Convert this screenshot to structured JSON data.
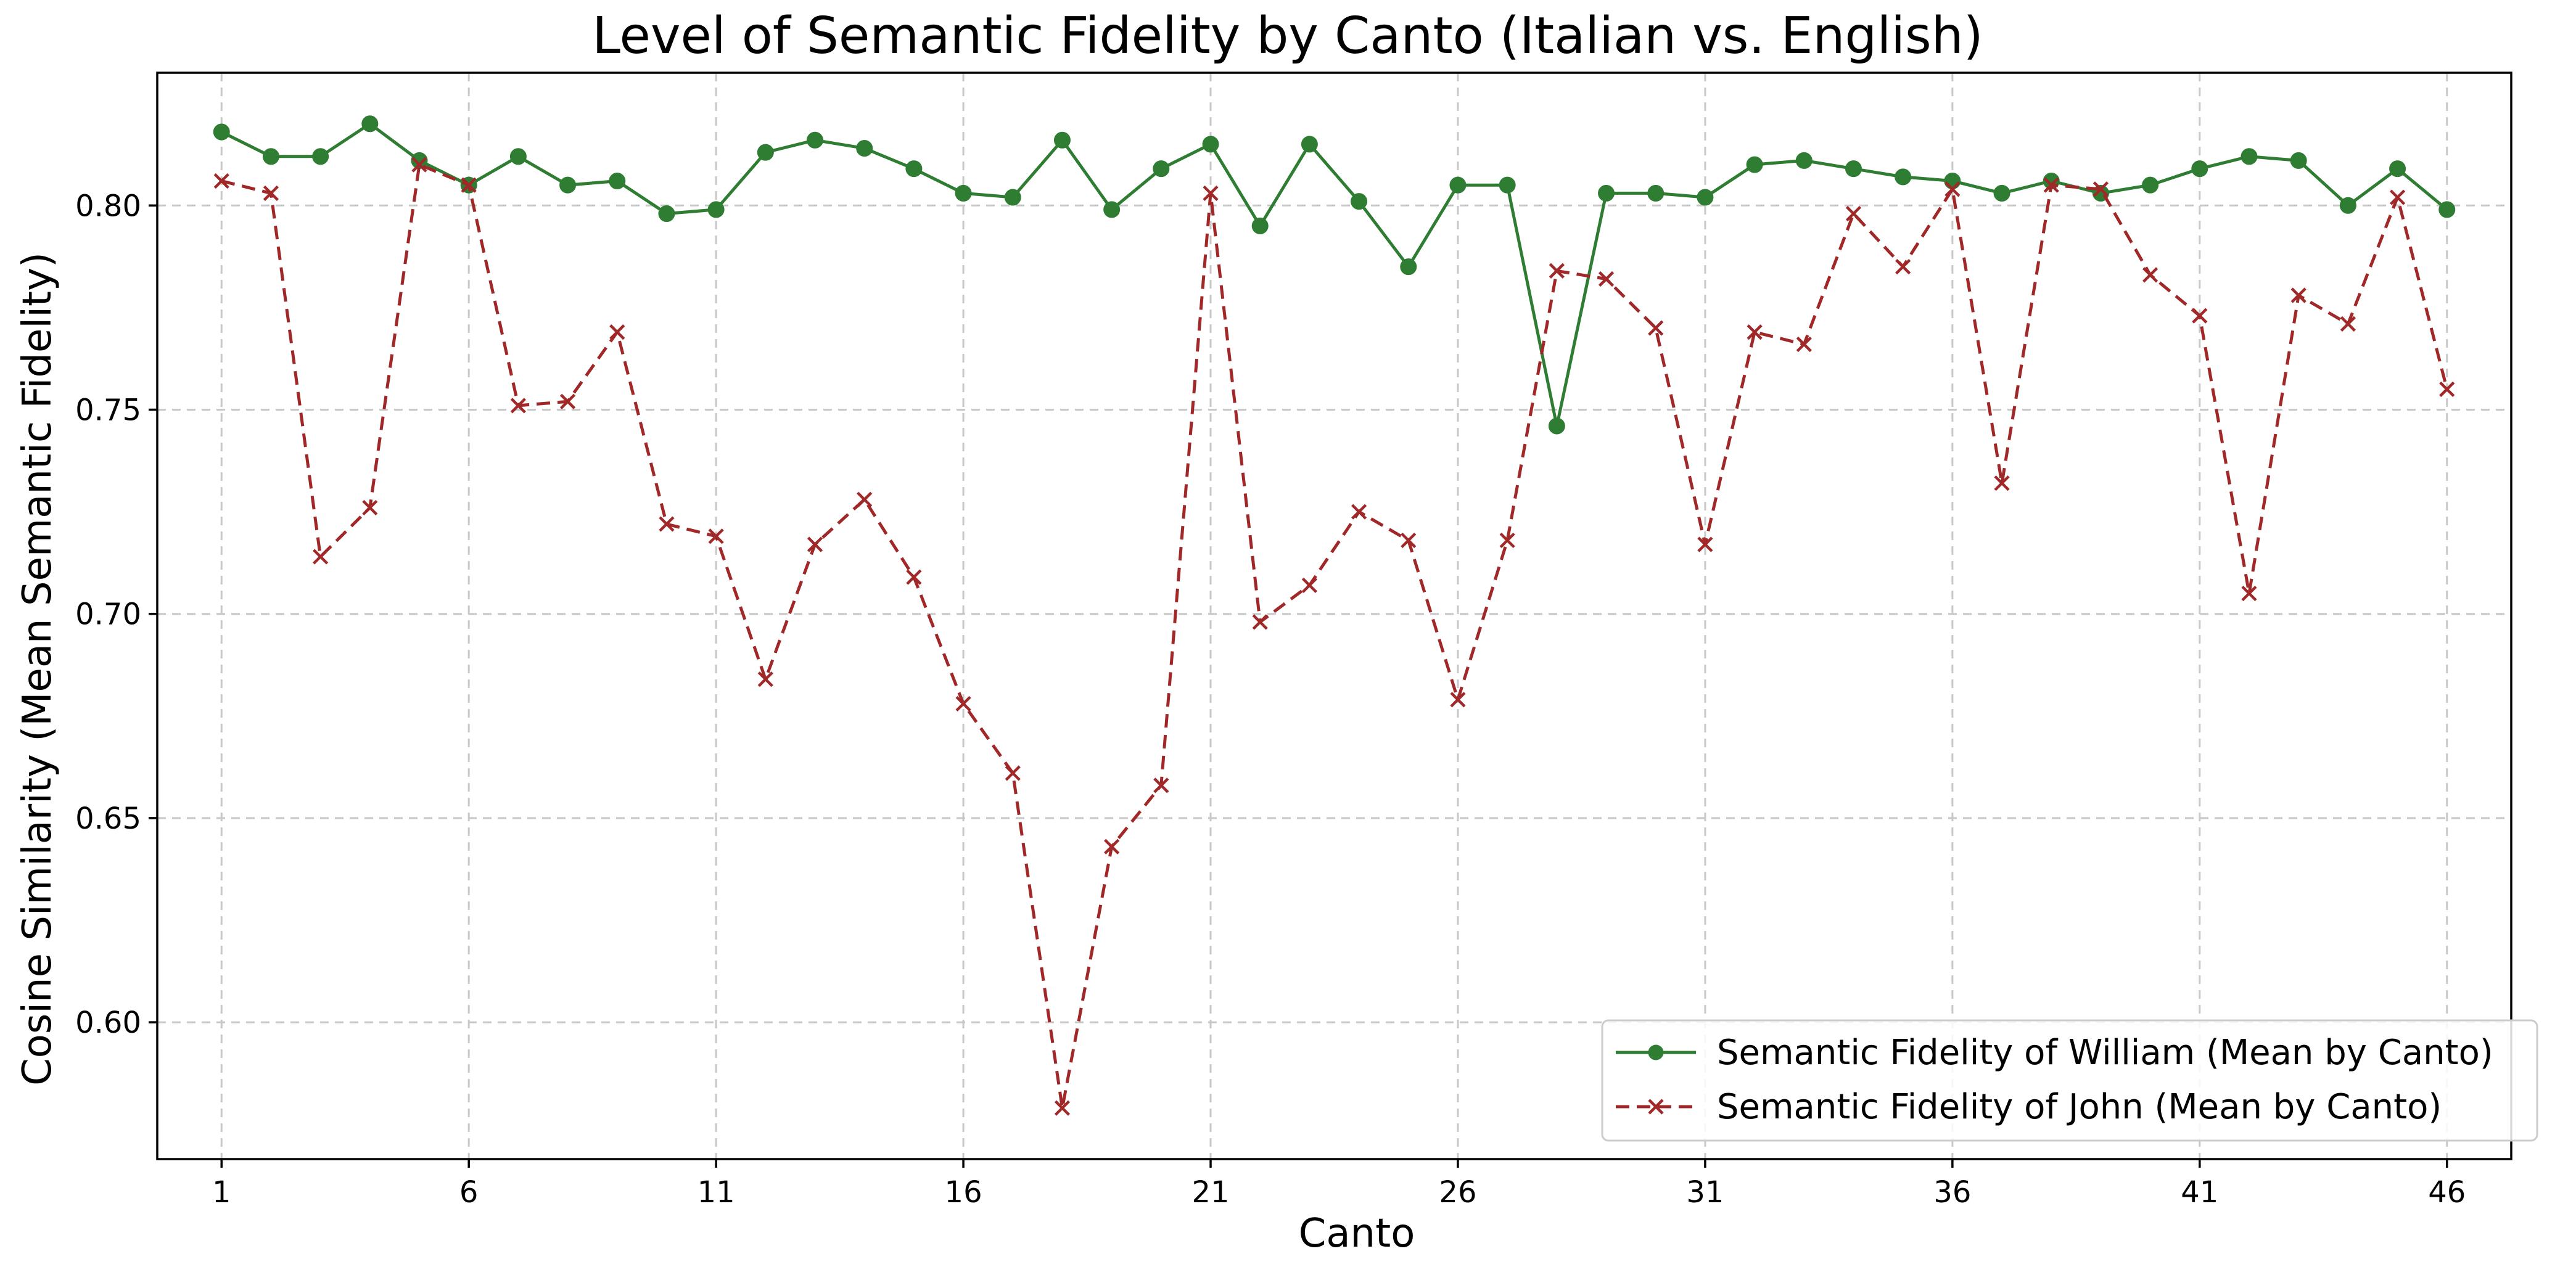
{
  "chart_data": {
    "type": "line",
    "title": "Level of Semantic Fidelity by Canto (Italian vs. English)",
    "xlabel": "Canto",
    "ylabel": "Cosine Similarity (Mean Semantic Fidelity)",
    "xlim": [
      -0.3,
      47.3
    ],
    "ylim": [
      0.5665,
      0.8325
    ],
    "xticks": [
      1,
      6,
      11,
      16,
      21,
      26,
      31,
      36,
      41,
      46
    ],
    "xtick_labels": [
      "1",
      "6",
      "11",
      "16",
      "21",
      "26",
      "31",
      "36",
      "41",
      "46"
    ],
    "yticks": [
      0.6,
      0.65,
      0.7,
      0.75,
      0.8
    ],
    "ytick_labels": [
      "0.60",
      "0.65",
      "0.70",
      "0.75",
      "0.80"
    ],
    "grid": true,
    "legend_position": "lower right",
    "x": [
      1,
      2,
      3,
      4,
      5,
      6,
      7,
      8,
      9,
      10,
      11,
      12,
      13,
      14,
      15,
      16,
      17,
      18,
      19,
      20,
      21,
      22,
      23,
      24,
      25,
      26,
      27,
      28,
      29,
      30,
      31,
      32,
      33,
      34,
      35,
      36,
      37,
      38,
      39,
      40,
      41,
      42,
      43,
      44,
      45,
      46
    ],
    "series": [
      {
        "name": "Semantic Fidelity of William (Mean by Canto)",
        "color": "#2e7d32",
        "marker": "circle",
        "line_style": "solid",
        "values": [
          0.818,
          0.812,
          0.812,
          0.82,
          0.811,
          0.805,
          0.812,
          0.805,
          0.806,
          0.798,
          0.799,
          0.813,
          0.816,
          0.814,
          0.809,
          0.803,
          0.802,
          0.816,
          0.799,
          0.809,
          0.815,
          0.795,
          0.815,
          0.801,
          0.785,
          0.805,
          0.805,
          0.746,
          0.803,
          0.803,
          0.802,
          0.81,
          0.811,
          0.809,
          0.807,
          0.806,
          0.803,
          0.806,
          0.803,
          0.805,
          0.809,
          0.812,
          0.811,
          0.8,
          0.809,
          0.799
        ]
      },
      {
        "name": "Semantic Fidelity of John (Mean by Canto)",
        "color": "#a02828",
        "marker": "x",
        "line_style": "dashed",
        "values": [
          0.806,
          0.803,
          0.714,
          0.726,
          0.81,
          0.805,
          0.751,
          0.752,
          0.769,
          0.722,
          0.719,
          0.684,
          0.717,
          0.728,
          0.709,
          0.678,
          0.661,
          0.579,
          0.643,
          0.658,
          0.803,
          0.698,
          0.707,
          0.725,
          0.718,
          0.679,
          0.718,
          0.784,
          0.782,
          0.77,
          0.717,
          0.769,
          0.766,
          0.798,
          0.785,
          0.804,
          0.732,
          0.805,
          0.804,
          0.783,
          0.773,
          0.705,
          0.778,
          0.771,
          0.802,
          0.755
        ]
      }
    ]
  }
}
